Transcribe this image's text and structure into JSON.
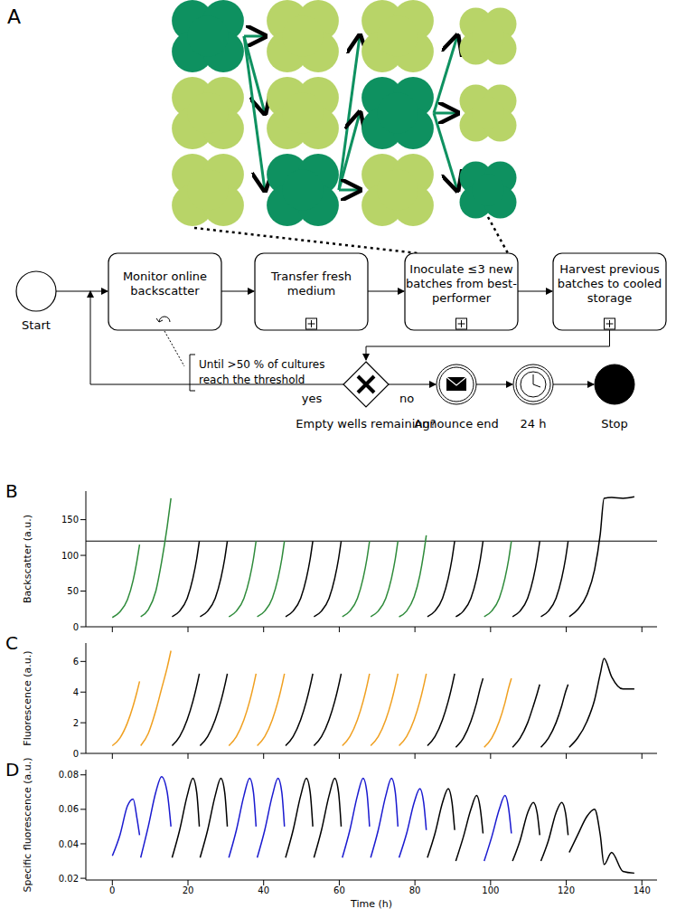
{
  "diagram": {
    "panel_label": "A",
    "start": "Start",
    "tasks": [
      {
        "lines": [
          "Monitor online",
          "backscatter"
        ]
      },
      {
        "lines": [
          "Transfer fresh",
          "medium"
        ]
      },
      {
        "lines": [
          "Inoculate ≤3 new",
          "batches from best-",
          "performer"
        ]
      },
      {
        "lines": [
          "Harvest previous",
          "batches to cooled",
          "storage"
        ]
      }
    ],
    "loop_note": [
      "Until >50 % of cultures",
      "reach the threshold"
    ],
    "gateway": "Empty wells remaining?",
    "yes": "yes",
    "no": "no",
    "message": "Announce end",
    "timer": "24 h",
    "stop": "Stop"
  },
  "chart_data": [
    {
      "panel_label": "B",
      "type": "line",
      "ylabel": "Backscatter (a.u.)",
      "xlim": [
        -7,
        144
      ],
      "xticks": [
        0,
        20,
        40,
        60,
        80,
        100,
        120,
        140
      ],
      "ylim": [
        0,
        190
      ],
      "yticks": [
        0,
        50,
        100,
        150
      ],
      "tick_labels": "y",
      "threshold": 120,
      "series": [
        {
          "color": "#2e8b3a",
          "x": [
            0,
            2,
            4,
            5.5,
            6.5,
            7.2
          ],
          "values": [
            13,
            21,
            38,
            65,
            92,
            115
          ]
        },
        {
          "color": "#2e8b3a",
          "x": [
            7.5,
            9.5,
            11.5,
            13,
            14.5,
            15.5
          ],
          "values": [
            14,
            24,
            50,
            90,
            140,
            180
          ]
        },
        {
          "color": "#000000",
          "x": [
            15.8,
            17.8,
            19.8,
            21.3,
            22.3,
            23
          ],
          "values": [
            14,
            22,
            40,
            68,
            95,
            120
          ]
        },
        {
          "color": "#000000",
          "x": [
            23.2,
            25.2,
            27.2,
            28.7,
            29.7,
            30.4
          ],
          "values": [
            14,
            22,
            40,
            68,
            95,
            120
          ]
        },
        {
          "color": "#2e8b3a",
          "x": [
            30.8,
            32.8,
            34.8,
            36.3,
            37.3,
            38
          ],
          "values": [
            14,
            22,
            40,
            68,
            95,
            120
          ]
        },
        {
          "color": "#2e8b3a",
          "x": [
            38.3,
            40.3,
            42.3,
            43.8,
            44.8,
            45.5
          ],
          "values": [
            14,
            22,
            40,
            68,
            95,
            120
          ]
        },
        {
          "color": "#000000",
          "x": [
            45.8,
            47.8,
            49.8,
            51.3,
            52.3,
            53
          ],
          "values": [
            14,
            22,
            40,
            68,
            95,
            120
          ]
        },
        {
          "color": "#000000",
          "x": [
            53.3,
            55.3,
            57.3,
            58.8,
            59.8,
            60.5
          ],
          "values": [
            14,
            22,
            40,
            68,
            95,
            120
          ]
        },
        {
          "color": "#2e8b3a",
          "x": [
            60.8,
            62.8,
            64.8,
            66.3,
            67.3,
            68
          ],
          "values": [
            14,
            22,
            40,
            68,
            95,
            120
          ]
        },
        {
          "color": "#2e8b3a",
          "x": [
            68.3,
            70.3,
            72.3,
            73.8,
            74.8,
            75.5
          ],
          "values": [
            14,
            22,
            40,
            68,
            95,
            120
          ]
        },
        {
          "color": "#2e8b3a",
          "x": [
            75.8,
            77.8,
            79.8,
            81.3,
            82.3,
            83
          ],
          "values": [
            14,
            22,
            42,
            72,
            102,
            128
          ]
        },
        {
          "color": "#000000",
          "x": [
            83.3,
            85.3,
            87.3,
            88.8,
            89.8,
            90.5
          ],
          "values": [
            14,
            22,
            40,
            68,
            95,
            120
          ]
        },
        {
          "color": "#000000",
          "x": [
            90.8,
            92.8,
            94.8,
            96.3,
            97.3,
            98
          ],
          "values": [
            14,
            22,
            40,
            68,
            95,
            120
          ]
        },
        {
          "color": "#2e8b3a",
          "x": [
            98.3,
            100.3,
            102.3,
            103.8,
            104.8,
            105.5
          ],
          "values": [
            14,
            22,
            40,
            68,
            95,
            120
          ]
        },
        {
          "color": "#000000",
          "x": [
            105.8,
            107.8,
            109.8,
            111.3,
            112.3,
            113
          ],
          "values": [
            14,
            22,
            40,
            68,
            95,
            120
          ]
        },
        {
          "color": "#000000",
          "x": [
            113.3,
            115.3,
            117.3,
            118.8,
            119.8,
            120.5
          ],
          "values": [
            14,
            22,
            40,
            68,
            95,
            120
          ]
        },
        {
          "color": "#000000",
          "x": [
            120.8,
            123,
            125.5,
            127.5,
            129,
            130,
            132,
            135,
            138
          ],
          "values": [
            14,
            24,
            45,
            80,
            130,
            180,
            181,
            180,
            182
          ]
        }
      ]
    },
    {
      "panel_label": "C",
      "type": "line",
      "ylabel": "Fluorescence (a.u.)",
      "xlim": [
        -7,
        144
      ],
      "xticks": [
        0,
        20,
        40,
        60,
        80,
        100,
        120,
        140
      ],
      "ylim": [
        0,
        7.2
      ],
      "yticks": [
        0,
        2,
        4,
        6
      ],
      "tick_labels": "y",
      "series": [
        {
          "color": "#f0a020",
          "x": [
            0,
            2,
            4,
            5.5,
            6.5,
            7.2
          ],
          "values": [
            0.5,
            1.0,
            2.0,
            3.1,
            4.0,
            4.7
          ]
        },
        {
          "color": "#f0a020",
          "x": [
            7.5,
            9.5,
            11.5,
            13,
            14.5,
            15.5
          ],
          "values": [
            0.5,
            1.3,
            2.8,
            4.2,
            5.6,
            6.7
          ]
        },
        {
          "color": "#000000",
          "x": [
            15.8,
            17.8,
            19.8,
            21.3,
            22.3,
            23
          ],
          "values": [
            0.5,
            1.1,
            2.2,
            3.4,
            4.4,
            5.2
          ]
        },
        {
          "color": "#000000",
          "x": [
            23.2,
            25.2,
            27.2,
            28.7,
            29.7,
            30.4
          ],
          "values": [
            0.5,
            1.1,
            2.2,
            3.4,
            4.4,
            5.2
          ]
        },
        {
          "color": "#f0a020",
          "x": [
            30.8,
            32.8,
            34.8,
            36.3,
            37.3,
            38
          ],
          "values": [
            0.5,
            1.1,
            2.2,
            3.4,
            4.4,
            5.2
          ]
        },
        {
          "color": "#f0a020",
          "x": [
            38.3,
            40.3,
            42.3,
            43.8,
            44.8,
            45.5
          ],
          "values": [
            0.5,
            1.1,
            2.2,
            3.4,
            4.4,
            5.2
          ]
        },
        {
          "color": "#000000",
          "x": [
            45.8,
            47.8,
            49.8,
            51.3,
            52.3,
            53
          ],
          "values": [
            0.5,
            1.1,
            2.2,
            3.4,
            4.4,
            5.2
          ]
        },
        {
          "color": "#000000",
          "x": [
            53.3,
            55.3,
            57.3,
            58.8,
            59.8,
            60.5
          ],
          "values": [
            0.5,
            1.1,
            2.2,
            3.4,
            4.4,
            5.2
          ]
        },
        {
          "color": "#f0a020",
          "x": [
            60.8,
            62.8,
            64.8,
            66.3,
            67.3,
            68
          ],
          "values": [
            0.5,
            1.1,
            2.2,
            3.4,
            4.4,
            5.2
          ]
        },
        {
          "color": "#f0a020",
          "x": [
            68.3,
            70.3,
            72.3,
            73.8,
            74.8,
            75.5
          ],
          "values": [
            0.5,
            1.1,
            2.2,
            3.4,
            4.4,
            5.2
          ]
        },
        {
          "color": "#f0a020",
          "x": [
            75.8,
            77.8,
            79.8,
            81.3,
            82.3,
            83
          ],
          "values": [
            0.5,
            1.1,
            2.2,
            3.4,
            4.4,
            5.2
          ]
        },
        {
          "color": "#000000",
          "x": [
            83.3,
            85.3,
            87.3,
            88.8,
            89.8,
            90.5
          ],
          "values": [
            0.5,
            1.1,
            2.2,
            3.4,
            4.4,
            5.2
          ]
        },
        {
          "color": "#000000",
          "x": [
            90.8,
            92.8,
            94.8,
            96.3,
            97.3,
            98
          ],
          "values": [
            0.4,
            1.0,
            2.1,
            3.3,
            4.3,
            4.9
          ]
        },
        {
          "color": "#f0a020",
          "x": [
            98.3,
            100.3,
            102.3,
            103.8,
            104.8,
            105.5
          ],
          "values": [
            0.4,
            1.0,
            2.1,
            3.3,
            4.3,
            4.9
          ]
        },
        {
          "color": "#000000",
          "x": [
            105.8,
            107.8,
            109.8,
            111.3,
            112.3,
            113
          ],
          "values": [
            0.4,
            1.0,
            2.0,
            3.1,
            3.9,
            4.5
          ]
        },
        {
          "color": "#000000",
          "x": [
            113.3,
            115.3,
            117.3,
            118.8,
            119.8,
            120.5
          ],
          "values": [
            0.4,
            1.0,
            2.0,
            3.1,
            4.0,
            4.5
          ]
        },
        {
          "color": "#000000",
          "x": [
            120.8,
            123,
            125.5,
            127.5,
            129,
            130,
            132,
            135,
            138
          ],
          "values": [
            0.4,
            1.0,
            2.1,
            3.5,
            5.2,
            6.2,
            5.0,
            4.2,
            4.2
          ]
        }
      ]
    },
    {
      "panel_label": "D",
      "type": "line",
      "ylabel": "Specific fluorescence (a.u.)",
      "xlabel": "Time (h)",
      "xlim": [
        -7,
        144
      ],
      "xticks": [
        0,
        20,
        40,
        60,
        80,
        100,
        120,
        140
      ],
      "ylim": [
        0.019,
        0.083
      ],
      "yticks": [
        0.02,
        0.04,
        0.06,
        0.08
      ],
      "series": [
        {
          "color": "#1a1ad0",
          "x": [
            0,
            2,
            4,
            5.5,
            6.5,
            7.2
          ],
          "values": [
            0.033,
            0.045,
            0.062,
            0.066,
            0.055,
            0.045
          ]
        },
        {
          "color": "#1a1ad0",
          "x": [
            7.5,
            9.5,
            11.5,
            13,
            14.5,
            15.5
          ],
          "values": [
            0.032,
            0.05,
            0.07,
            0.079,
            0.07,
            0.05
          ]
        },
        {
          "color": "#000000",
          "x": [
            15.8,
            17.8,
            19.8,
            21.3,
            22.3,
            23
          ],
          "values": [
            0.032,
            0.048,
            0.068,
            0.078,
            0.07,
            0.05
          ]
        },
        {
          "color": "#000000",
          "x": [
            23.2,
            25.2,
            27.2,
            28.7,
            29.7,
            30.4
          ],
          "values": [
            0.032,
            0.048,
            0.068,
            0.078,
            0.07,
            0.05
          ]
        },
        {
          "color": "#1a1ad0",
          "x": [
            30.8,
            32.8,
            34.8,
            36.3,
            37.3,
            38
          ],
          "values": [
            0.032,
            0.048,
            0.068,
            0.078,
            0.07,
            0.05
          ]
        },
        {
          "color": "#1a1ad0",
          "x": [
            38.3,
            40.3,
            42.3,
            43.8,
            44.8,
            45.5
          ],
          "values": [
            0.032,
            0.048,
            0.068,
            0.078,
            0.07,
            0.05
          ]
        },
        {
          "color": "#000000",
          "x": [
            45.8,
            47.8,
            49.8,
            51.3,
            52.3,
            53
          ],
          "values": [
            0.032,
            0.048,
            0.068,
            0.078,
            0.07,
            0.05
          ]
        },
        {
          "color": "#000000",
          "x": [
            53.3,
            55.3,
            57.3,
            58.8,
            59.8,
            60.5
          ],
          "values": [
            0.032,
            0.048,
            0.068,
            0.078,
            0.07,
            0.05
          ]
        },
        {
          "color": "#1a1ad0",
          "x": [
            60.8,
            62.8,
            64.8,
            66.3,
            67.3,
            68
          ],
          "values": [
            0.032,
            0.048,
            0.068,
            0.078,
            0.07,
            0.05
          ]
        },
        {
          "color": "#1a1ad0",
          "x": [
            68.3,
            70.3,
            72.3,
            73.8,
            74.8,
            75.5
          ],
          "values": [
            0.032,
            0.048,
            0.068,
            0.078,
            0.07,
            0.05
          ]
        },
        {
          "color": "#1a1ad0",
          "x": [
            75.8,
            77.8,
            79.8,
            81.3,
            82.3,
            83
          ],
          "values": [
            0.032,
            0.046,
            0.064,
            0.072,
            0.064,
            0.048
          ]
        },
        {
          "color": "#000000",
          "x": [
            83.3,
            85.3,
            87.3,
            88.8,
            89.8,
            90.5
          ],
          "values": [
            0.032,
            0.046,
            0.064,
            0.072,
            0.064,
            0.048
          ]
        },
        {
          "color": "#000000",
          "x": [
            90.8,
            92.8,
            94.8,
            96.3,
            97.3,
            98
          ],
          "values": [
            0.03,
            0.044,
            0.06,
            0.068,
            0.06,
            0.046
          ]
        },
        {
          "color": "#1a1ad0",
          "x": [
            98.3,
            100.3,
            102.3,
            103.8,
            104.8,
            105.5
          ],
          "values": [
            0.03,
            0.044,
            0.06,
            0.068,
            0.06,
            0.046
          ]
        },
        {
          "color": "#000000",
          "x": [
            105.8,
            107.8,
            109.8,
            111.3,
            112.3,
            113
          ],
          "values": [
            0.03,
            0.042,
            0.058,
            0.064,
            0.058,
            0.045
          ]
        },
        {
          "color": "#000000",
          "x": [
            113.3,
            115.3,
            117.3,
            118.8,
            119.8,
            120.5
          ],
          "values": [
            0.03,
            0.042,
            0.058,
            0.064,
            0.058,
            0.045
          ]
        },
        {
          "color": "#000000",
          "x": [
            120.8,
            123,
            125.5,
            127.5,
            129,
            130,
            132,
            135,
            138
          ],
          "values": [
            0.035,
            0.045,
            0.056,
            0.06,
            0.045,
            0.028,
            0.035,
            0.024,
            0.023
          ]
        }
      ]
    }
  ]
}
